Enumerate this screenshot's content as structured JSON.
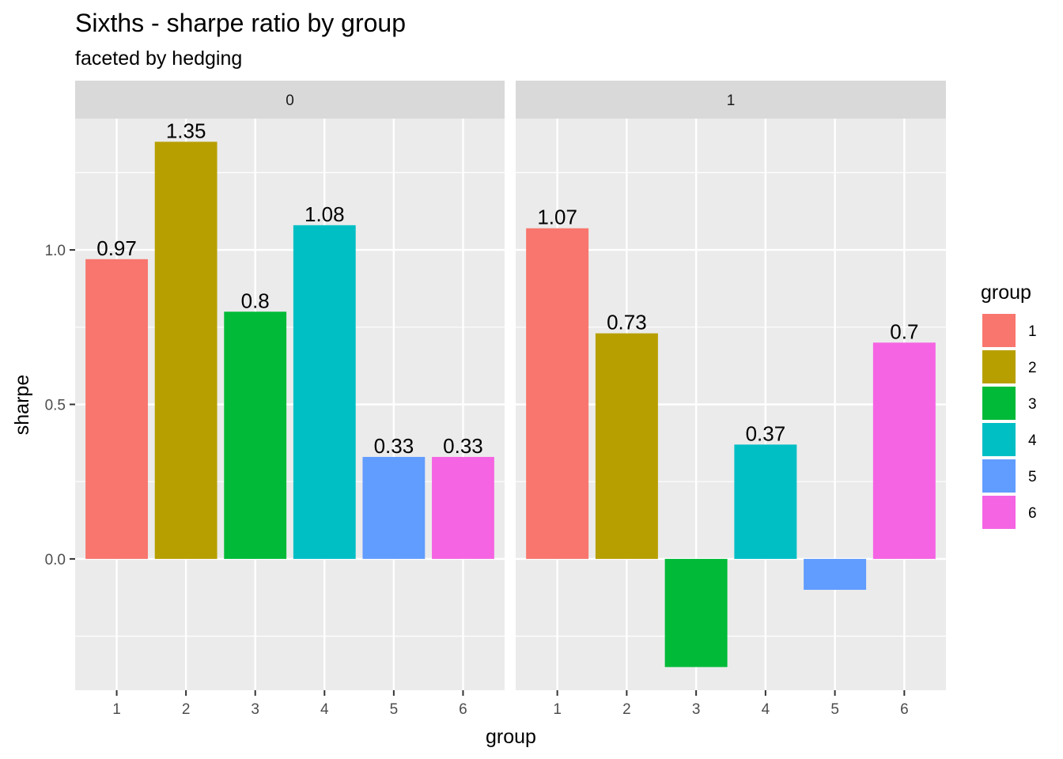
{
  "chart_data": {
    "type": "bar",
    "title": "Sixths - sharpe ratio by group",
    "subtitle": "faceted by hedging",
    "xlabel": "group",
    "ylabel": "sharpe",
    "ylim": [
      -0.425,
      1.425
    ],
    "yticks": [
      {
        "value": 0.0,
        "label": "0.0"
      },
      {
        "value": 0.5,
        "label": "0.5"
      },
      {
        "value": 1.0,
        "label": "1.0"
      }
    ],
    "categories": [
      "1",
      "2",
      "3",
      "4",
      "5",
      "6"
    ],
    "grid": true,
    "legend": {
      "title": "group",
      "position": "right",
      "items": [
        {
          "label": "1",
          "color": "#F8766D"
        },
        {
          "label": "2",
          "color": "#B79F00"
        },
        {
          "label": "3",
          "color": "#00BA38"
        },
        {
          "label": "4",
          "color": "#00BFC4"
        },
        {
          "label": "5",
          "color": "#619CFF"
        },
        {
          "label": "6",
          "color": "#F564E3"
        }
      ]
    },
    "colors": [
      "#F8766D",
      "#B79F00",
      "#00BA38",
      "#00BFC4",
      "#619CFF",
      "#F564E3"
    ],
    "facets": [
      {
        "label": "0",
        "values": [
          0.97,
          1.35,
          0.8,
          1.08,
          0.33,
          0.33
        ],
        "value_labels": [
          "0.97",
          "1.35",
          "0.8",
          "1.08",
          "0.33",
          "0.33"
        ]
      },
      {
        "label": "1",
        "values": [
          1.07,
          0.73,
          -0.35,
          0.37,
          -0.1,
          0.7
        ],
        "value_labels": [
          "1.07",
          "0.73",
          "",
          "0.37",
          "",
          "0.7"
        ]
      }
    ]
  }
}
